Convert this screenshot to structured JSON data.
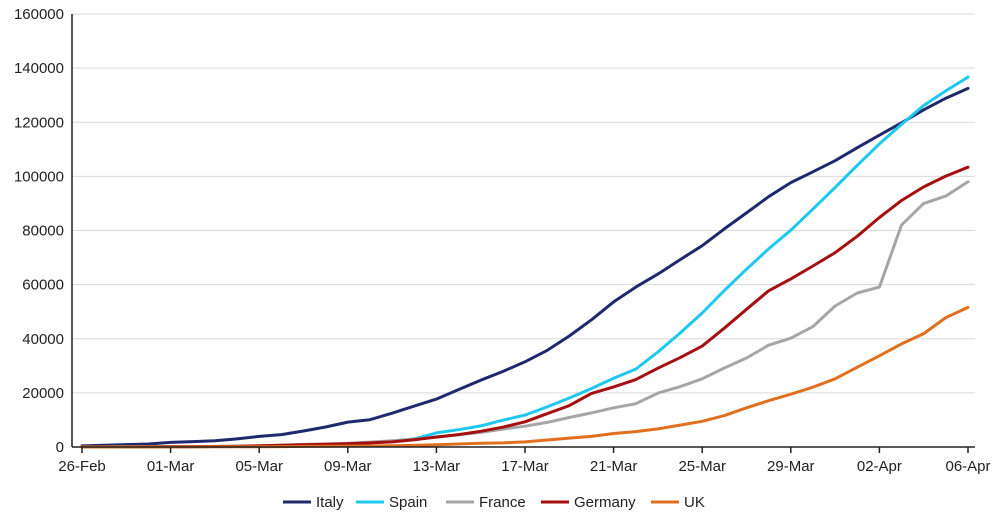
{
  "chart_data": {
    "type": "line",
    "title": "",
    "xlabel": "",
    "ylabel": "",
    "x": [
      "26-Feb",
      "27-Feb",
      "28-Feb",
      "29-Feb",
      "01-Mar",
      "02-Mar",
      "03-Mar",
      "04-Mar",
      "05-Mar",
      "06-Mar",
      "07-Mar",
      "08-Mar",
      "09-Mar",
      "10-Mar",
      "11-Mar",
      "12-Mar",
      "13-Mar",
      "14-Mar",
      "15-Mar",
      "16-Mar",
      "17-Mar",
      "18-Mar",
      "19-Mar",
      "20-Mar",
      "21-Mar",
      "22-Mar",
      "23-Mar",
      "24-Mar",
      "25-Mar",
      "26-Mar",
      "27-Mar",
      "28-Mar",
      "29-Mar",
      "30-Mar",
      "31-Mar",
      "01-Apr",
      "02-Apr",
      "03-Apr",
      "04-Apr",
      "05-Apr",
      "06-Apr"
    ],
    "x_ticks": [
      "26-Feb",
      "01-Mar",
      "05-Mar",
      "09-Mar",
      "13-Mar",
      "17-Mar",
      "21-Mar",
      "25-Mar",
      "29-Mar",
      "02-Apr",
      "06-Apr"
    ],
    "ylim": [
      0,
      160000
    ],
    "y_ticks": [
      "0",
      "20000",
      "40000",
      "60000",
      "80000",
      "100000",
      "120000",
      "140000",
      "160000"
    ],
    "grid": "horizontal",
    "legend_position": "bottom",
    "series": [
      {
        "name": "Italy",
        "color": "#1f2a6e",
        "values": [
          400,
          650,
          900,
          1100,
          1700,
          2000,
          2300,
          3000,
          3900,
          4600,
          5900,
          7400,
          9200,
          10100,
          12500,
          15100,
          17700,
          21200,
          24700,
          27900,
          31500,
          35700,
          41000,
          47000,
          53600,
          59100,
          63900,
          69200,
          74400,
          80600,
          86500,
          92500,
          97700,
          101700,
          105800,
          110600,
          115200,
          119800,
          124600,
          128900,
          132500
        ]
      },
      {
        "name": "Spain",
        "color": "#1ec8f0",
        "values": [
          10,
          15,
          30,
          50,
          70,
          100,
          150,
          200,
          250,
          350,
          500,
          600,
          1000,
          1600,
          2100,
          3000,
          5200,
          6400,
          7800,
          9900,
          11800,
          14800,
          18100,
          21600,
          25400,
          28800,
          35100,
          42100,
          49500,
          57800,
          65700,
          73200,
          80100,
          87900,
          95900,
          104100,
          112000,
          119200,
          126200,
          131600,
          136700
        ]
      },
      {
        "name": "France",
        "color": "#a6a6a6",
        "values": [
          20,
          40,
          60,
          100,
          130,
          190,
          210,
          280,
          380,
          650,
          950,
          1100,
          1400,
          1800,
          2300,
          2900,
          3600,
          4500,
          5400,
          6600,
          7700,
          9100,
          10900,
          12600,
          14500,
          16000,
          19900,
          22300,
          25200,
          29200,
          32900,
          37600,
          40200,
          44500,
          52100,
          56900,
          59100,
          82000,
          90000,
          92700,
          98000
        ]
      },
      {
        "name": "Germany",
        "color": "#a50f0f",
        "values": [
          30,
          40,
          50,
          60,
          130,
          160,
          200,
          260,
          480,
          670,
          800,
          1000,
          1200,
          1500,
          1900,
          2700,
          3700,
          4600,
          5800,
          7300,
          9300,
          12300,
          15300,
          19800,
          22200,
          24900,
          29100,
          33000,
          37300,
          43900,
          50900,
          57700,
          62100,
          66900,
          71800,
          77900,
          84800,
          91100,
          96100,
          100100,
          103400
        ]
      },
      {
        "name": "UK",
        "color": "#e07020",
        "values": [
          10,
          15,
          20,
          25,
          40,
          50,
          60,
          90,
          120,
          160,
          210,
          270,
          320,
          380,
          460,
          590,
          800,
          1100,
          1400,
          1500,
          1900,
          2600,
          3300,
          3900,
          5000,
          5700,
          6700,
          8100,
          9500,
          11600,
          14500,
          17100,
          19500,
          22100,
          25200,
          29500,
          33700,
          38100,
          41900,
          47800,
          51600
        ]
      }
    ]
  }
}
